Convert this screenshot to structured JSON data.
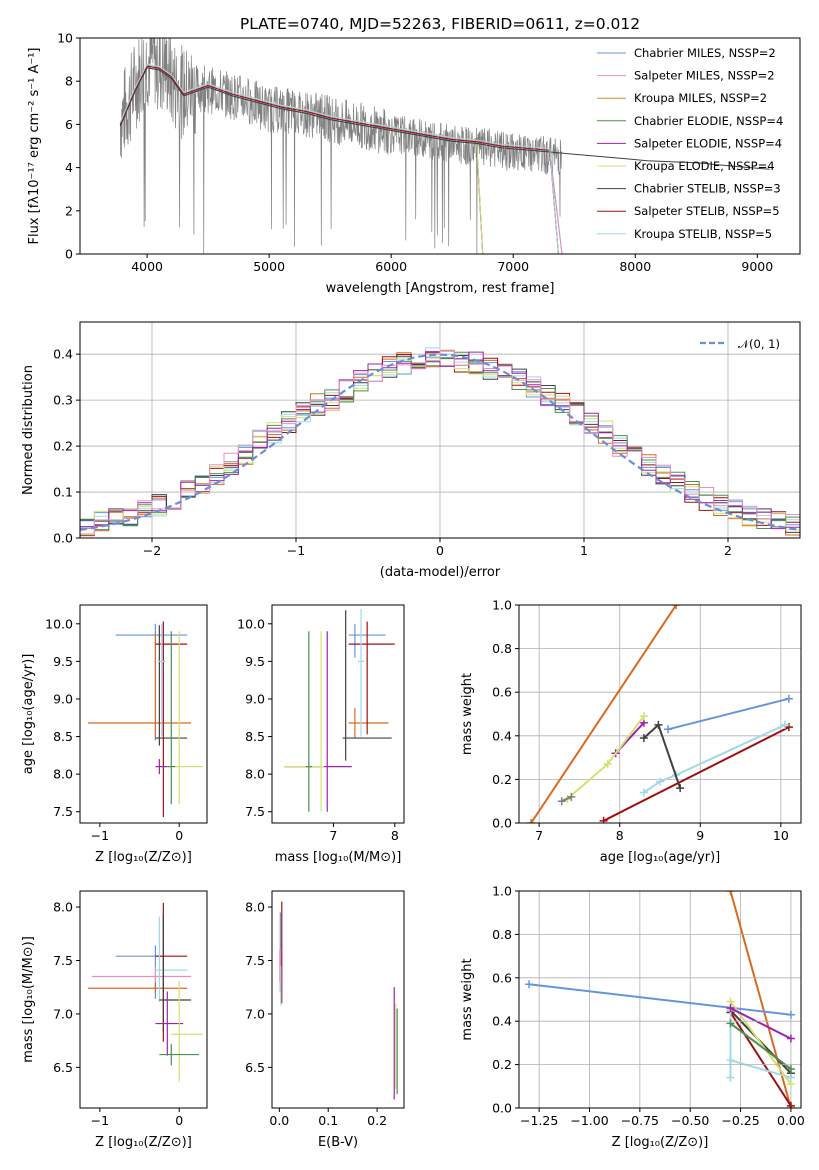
{
  "figure": {
    "title": "PLATE=0740, MJD=52263, FIBERID=0611, z=0.012"
  },
  "chart_data": [
    {
      "type": "line",
      "id": "spectrum",
      "xlabel": "wavelength [Angstrom, rest frame]",
      "ylabel": "Flux [fλ10⁻¹⁷ erg cm⁻² s⁻¹ A⁻¹]",
      "xlim": [
        3450,
        9350
      ],
      "ylim": [
        0,
        10
      ],
      "xticks": [
        4000,
        5000,
        6000,
        7000,
        8000,
        9000
      ],
      "yticks": [
        0,
        2,
        4,
        6,
        8,
        10
      ],
      "data_curve": {
        "color": "#808080",
        "x": [
          3780,
          3850,
          3900,
          3950,
          4000,
          4050,
          4100,
          4150,
          4200,
          4300,
          4400,
          4500,
          4600,
          4700,
          4800,
          4900,
          5000,
          5200,
          5400,
          5600,
          5800,
          6000,
          6200,
          6400,
          6600,
          6800,
          7000,
          7200,
          7400
        ],
        "y": [
          6.2,
          7.0,
          7.8,
          8.4,
          8.9,
          9.1,
          8.6,
          8.7,
          8.0,
          7.4,
          7.7,
          7.6,
          7.5,
          7.3,
          7.2,
          6.9,
          6.7,
          6.6,
          6.4,
          6.1,
          5.9,
          5.6,
          5.4,
          5.2,
          5.0,
          4.9,
          4.7,
          4.6,
          4.5
        ]
      },
      "model_x": [
        3780,
        3900,
        4000,
        4100,
        4200,
        4300,
        4500,
        4700,
        4900,
        5100,
        5300,
        5500,
        5700,
        5900,
        6100,
        6300,
        6500,
        6700,
        6900,
        7100,
        7300,
        7500,
        7700,
        7900,
        8100,
        8300,
        8500,
        8700,
        8900,
        9100
      ],
      "model_y": [
        6.0,
        7.6,
        8.7,
        8.6,
        8.2,
        7.4,
        7.8,
        7.4,
        7.1,
        6.8,
        6.6,
        6.3,
        6.1,
        5.9,
        5.7,
        5.5,
        5.3,
        5.2,
        5.0,
        4.9,
        4.8,
        4.7,
        4.6,
        4.5,
        4.4,
        4.35,
        4.3,
        4.2,
        4.1,
        4.0
      ],
      "series": [
        {
          "name": "Chabrier MILES, N_SSP=2",
          "color": "#6495dc",
          "xmax": 7400
        },
        {
          "name": "Salpeter MILES, N_SSP=2",
          "color": "#e890c0",
          "xmax": 7400
        },
        {
          "name": "Kroupa MILES, N_SSP=2",
          "color": "#d08a30",
          "xmax": 7370
        },
        {
          "name": "Chabrier ELODIE, N_SSP=4",
          "color": "#4f8f4f",
          "xmax": 6750
        },
        {
          "name": "Salpeter ELODIE, N_SSP=4",
          "color": "#a020b0",
          "xmax": 6750
        },
        {
          "name": "Kroupa ELODIE, N_SSP=4",
          "color": "#d4e070",
          "xmax": 6750
        },
        {
          "name": "Chabrier STELIB, N_SSP=3",
          "color": "#404040",
          "xmax": 9100
        },
        {
          "name": "Salpeter STELIB, N_SSP=5",
          "color": "#a01010",
          "xmax": 7370
        },
        {
          "name": "Kroupa STELIB, N_SSP=5",
          "color": "#a0d8e8",
          "xmax": 7370
        }
      ],
      "legend": "upper-right"
    },
    {
      "type": "histogram",
      "id": "residuals",
      "xlabel": "(data-model)/error",
      "ylabel": "Normed distribution",
      "xlim": [
        -2.5,
        2.5
      ],
      "ylim": [
        0,
        0.47
      ],
      "xticks": [
        -2,
        -1,
        0,
        1,
        2
      ],
      "yticks": [
        0.0,
        0.1,
        0.2,
        0.3,
        0.4
      ],
      "grid": true,
      "bin_width": 0.1,
      "profile": [
        0.03,
        0.035,
        0.04,
        0.05,
        0.06,
        0.07,
        0.08,
        0.1,
        0.12,
        0.14,
        0.16,
        0.18,
        0.21,
        0.23,
        0.25,
        0.27,
        0.29,
        0.3,
        0.32,
        0.34,
        0.36,
        0.37,
        0.38,
        0.39,
        0.395,
        0.39,
        0.385,
        0.38,
        0.37,
        0.36,
        0.345,
        0.33,
        0.31,
        0.29,
        0.27,
        0.25,
        0.23,
        0.2,
        0.18,
        0.16,
        0.14,
        0.12,
        0.1,
        0.085,
        0.07,
        0.06,
        0.05,
        0.04,
        0.035,
        0.03
      ],
      "gaussian_label": "𝒩(0, 1)",
      "gaussian_color": "#6a8fd8",
      "legend": "upper-right"
    },
    {
      "type": "errorbar",
      "id": "age-vs-Z",
      "xlabel": "Z [log₁₀(Z/Z⊙)]",
      "ylabel": "age  [log₁₀(age/yr)]",
      "xlim": [
        -1.25,
        0.35
      ],
      "ylim": [
        7.35,
        10.25
      ],
      "xticks": [
        -1,
        0
      ],
      "yticks": [
        7.5,
        8.0,
        8.5,
        9.0,
        9.5,
        10.0
      ],
      "points": [
        {
          "color": "#6495dc",
          "x": -0.3,
          "xerr": [
            0.5,
            0.4
          ],
          "y": 9.85,
          "yerr": [
            1.4,
            0.15
          ]
        },
        {
          "color": "#d86a20",
          "x": -0.3,
          "xerr": [
            0.85,
            0.45
          ],
          "y": 8.68,
          "yerr": [
            0.2,
            1.2
          ]
        },
        {
          "color": "#404040",
          "x": -0.25,
          "xerr": [
            0.05,
            0.35
          ],
          "y": 8.48,
          "yerr": [
            0.1,
            1.5
          ]
        },
        {
          "color": "#a01010",
          "x": -0.2,
          "xerr": [
            0.1,
            0.3
          ],
          "y": 9.73,
          "yerr": [
            2.3,
            0.3
          ]
        },
        {
          "color": "#a020b0",
          "x": -0.25,
          "xerr": [
            0.05,
            0.1
          ],
          "y": 8.1,
          "yerr": [
            0.1,
            0.1
          ]
        },
        {
          "color": "#d4e070",
          "x": 0.0,
          "xerr": [
            0.1,
            0.3
          ],
          "y": 8.1,
          "yerr": [
            0.5,
            1.8
          ]
        },
        {
          "color": "#4f8f4f",
          "x": -0.1,
          "xerr": [
            0.05,
            0.05
          ],
          "y": 8.1,
          "yerr": [
            0.5,
            1.8
          ]
        },
        {
          "color": "#a0d8e8",
          "x": -0.22,
          "xerr": [
            0.05,
            0.05
          ],
          "y": 9.5,
          "yerr": [
            1.0,
            0.5
          ]
        }
      ]
    },
    {
      "type": "errorbar",
      "id": "age-vs-mass",
      "xlabel": "mass [log₁₀(M/M⊙)]",
      "xlim": [
        6.0,
        8.15
      ],
      "ylim": [
        7.35,
        10.25
      ],
      "xticks": [
        7,
        8
      ],
      "yticks": [
        7.5,
        8.0,
        8.5,
        9.0,
        9.5,
        10.0
      ],
      "points": [
        {
          "color": "#6495dc",
          "x": 7.35,
          "xerr": [
            0.1,
            0.5
          ],
          "y": 9.85,
          "yerr": [
            0.3,
            0.15
          ]
        },
        {
          "color": "#d86a20",
          "x": 7.35,
          "xerr": [
            0.1,
            0.55
          ],
          "y": 8.68,
          "yerr": [
            0.2,
            0.2
          ]
        },
        {
          "color": "#404040",
          "x": 7.2,
          "xerr": [
            0.05,
            0.75
          ],
          "y": 8.48,
          "yerr": [
            0.3,
            1.7
          ]
        },
        {
          "color": "#a01010",
          "x": 7.55,
          "xerr": [
            0.3,
            0.45
          ],
          "y": 9.73,
          "yerr": [
            1.2,
            0.3
          ]
        },
        {
          "color": "#a020b0",
          "x": 6.9,
          "xerr": [
            0.7,
            0.4
          ],
          "y": 8.1,
          "yerr": [
            0.6,
            1.8
          ]
        },
        {
          "color": "#d4e070",
          "x": 6.8,
          "xerr": [
            0.6,
            0.05
          ],
          "y": 8.1,
          "yerr": [
            0.6,
            1.8
          ]
        },
        {
          "color": "#4f8f4f",
          "x": 6.6,
          "xerr": [
            0.05,
            0.05
          ],
          "y": 8.1,
          "yerr": [
            0.6,
            1.8
          ]
        },
        {
          "color": "#a0d8e8",
          "x": 7.45,
          "xerr": [
            0.05,
            0.05
          ],
          "y": 9.5,
          "yerr": [
            1.0,
            0.7
          ]
        }
      ]
    },
    {
      "type": "line",
      "id": "mass-weight-vs-age",
      "xlabel": "age  [log₁₀(age/yr)]",
      "ylabel": "mass weight",
      "xlim": [
        6.75,
        10.25
      ],
      "ylim": [
        0.0,
        1.0
      ],
      "xticks": [
        7,
        8,
        9,
        10
      ],
      "yticks": [
        0.0,
        0.2,
        0.4,
        0.6,
        0.8,
        1.0
      ],
      "grid": true,
      "series": [
        {
          "color": "#d86a20",
          "x": [
            6.9,
            8.7
          ],
          "y": [
            0.0,
            1.0
          ]
        },
        {
          "color": "#6495dc",
          "x": [
            8.6,
            10.1
          ],
          "y": [
            0.43,
            0.57
          ]
        },
        {
          "color": "#a01010",
          "x": [
            7.8,
            10.1
          ],
          "y": [
            0.01,
            0.44
          ]
        },
        {
          "color": "#a0d8e8",
          "x": [
            8.3,
            8.5,
            8.7,
            10.05
          ],
          "y": [
            0.14,
            0.19,
            0.22,
            0.45
          ]
        },
        {
          "color": "#a020b0",
          "x": [
            7.95,
            8.3
          ],
          "y": [
            0.32,
            0.46
          ]
        },
        {
          "color": "#d4e070",
          "x": [
            7.35,
            7.85,
            8.3
          ],
          "y": [
            0.11,
            0.27,
            0.49
          ]
        },
        {
          "color": "#404040",
          "x": [
            8.3,
            8.48,
            8.75
          ],
          "y": [
            0.39,
            0.45,
            0.16
          ]
        },
        {
          "color": "#808080",
          "x": [
            7.28,
            7.4
          ],
          "y": [
            0.1,
            0.12
          ]
        }
      ]
    },
    {
      "type": "errorbar",
      "id": "mass-vs-Z",
      "xlabel": "Z [log₁₀(Z/Z⊙)]",
      "ylabel": "mass [log₁₀(M/M⊙)]",
      "xlim": [
        -1.25,
        0.35
      ],
      "ylim": [
        6.12,
        8.15
      ],
      "xticks": [
        -1,
        0
      ],
      "yticks": [
        6.5,
        7.0,
        7.5,
        8.0
      ],
      "points": [
        {
          "color": "#6495dc",
          "x": -0.3,
          "xerr": [
            0.5,
            0.1
          ],
          "y": 7.54,
          "yerr": [
            0.4,
            0.1
          ]
        },
        {
          "color": "#e890c0",
          "x": -0.3,
          "xerr": [
            0.8,
            0.45
          ],
          "y": 7.35,
          "yerr": [
            0.1,
            0.1
          ]
        },
        {
          "color": "#d86a20",
          "x": -0.3,
          "xerr": [
            0.85,
            0.4
          ],
          "y": 7.24,
          "yerr": [
            0.05,
            0.05
          ]
        },
        {
          "color": "#a01010",
          "x": -0.2,
          "xerr": [
            0.1,
            0.3
          ],
          "y": 7.54,
          "yerr": [
            0.8,
            0.5
          ]
        },
        {
          "color": "#a0d8e8",
          "x": -0.25,
          "xerr": [
            0.05,
            0.35
          ],
          "y": 7.41,
          "yerr": [
            0.3,
            0.5
          ]
        },
        {
          "color": "#404040",
          "x": -0.2,
          "xerr": [
            0.05,
            0.35
          ],
          "y": 7.13,
          "yerr": [
            0.3,
            0.8
          ]
        },
        {
          "color": "#a020b0",
          "x": -0.15,
          "xerr": [
            0.15,
            0.2
          ],
          "y": 6.91,
          "yerr": [
            0.3,
            0.3
          ]
        },
        {
          "color": "#d4e070",
          "x": 0.0,
          "xerr": [
            0.1,
            0.3
          ],
          "y": 6.81,
          "yerr": [
            0.45,
            0.5
          ]
        },
        {
          "color": "#4f8f4f",
          "x": -0.1,
          "xerr": [
            0.15,
            0.35
          ],
          "y": 6.62,
          "yerr": [
            0.1,
            0.1
          ]
        }
      ]
    },
    {
      "type": "errorbar",
      "id": "mass-vs-EBV",
      "xlabel": "E(B-V)",
      "xlim": [
        -0.015,
        0.255
      ],
      "ylim": [
        6.12,
        8.15
      ],
      "xticks": [
        0.0,
        0.1,
        0.2
      ],
      "yticks": [
        6.5,
        7.0,
        7.5,
        8.0
      ],
      "vlines": [
        {
          "color": "#a01010",
          "x": 0.005,
          "y": [
            7.1,
            8.05
          ]
        },
        {
          "color": "#6495dc",
          "x": 0.002,
          "y": [
            7.2,
            7.95
          ]
        },
        {
          "color": "#e890c0",
          "x": 0.001,
          "y": [
            7.3,
            7.6
          ]
        },
        {
          "color": "#a0d8e8",
          "x": 0.003,
          "y": [
            7.08,
            7.45
          ]
        },
        {
          "color": "#a020b0",
          "x": 0.235,
          "y": [
            6.2,
            7.25
          ]
        },
        {
          "color": "#d4e070",
          "x": 0.238,
          "y": [
            6.3,
            7.1
          ]
        },
        {
          "color": "#4f8f4f",
          "x": 0.241,
          "y": [
            6.25,
            7.05
          ]
        }
      ]
    },
    {
      "type": "line",
      "id": "mass-weight-vs-Z",
      "xlabel": "Z [log₁₀(Z/Z⊙)]",
      "ylabel": "mass weight",
      "xlim": [
        -1.35,
        0.05
      ],
      "ylim": [
        0.0,
        1.0
      ],
      "xticks": [
        -1.25,
        -1.0,
        -0.75,
        -0.5,
        -0.25,
        0.0
      ],
      "grid": true,
      "series": [
        {
          "color": "#d86a20",
          "x": [
            -0.3,
            0.0
          ],
          "y": [
            1.0,
            0.0
          ]
        },
        {
          "color": "#6495dc",
          "x": [
            -1.3,
            0.0
          ],
          "y": [
            0.57,
            0.43
          ]
        },
        {
          "color": "#404040",
          "x": [
            -0.3,
            0.0
          ],
          "y": [
            0.45,
            0.16
          ]
        },
        {
          "color": "#a01010",
          "x": [
            -0.3,
            0.0
          ],
          "y": [
            0.44,
            0.01
          ]
        },
        {
          "color": "#a0d8e8",
          "x": [
            -0.3,
            0.0
          ],
          "y": [
            0.22,
            0.14
          ]
        },
        {
          "color": "#a0d8e8",
          "x": [
            -0.3,
            -0.3
          ],
          "y": [
            0.14,
            0.45
          ]
        },
        {
          "color": "#d4e070",
          "x": [
            -0.3,
            0.0
          ],
          "y": [
            0.49,
            0.11
          ]
        },
        {
          "color": "#a020b0",
          "x": [
            -0.3,
            0.0
          ],
          "y": [
            0.46,
            0.32
          ]
        },
        {
          "color": "#4f8f4f",
          "x": [
            -0.3,
            0.0
          ],
          "y": [
            0.39,
            0.18
          ]
        }
      ]
    }
  ]
}
